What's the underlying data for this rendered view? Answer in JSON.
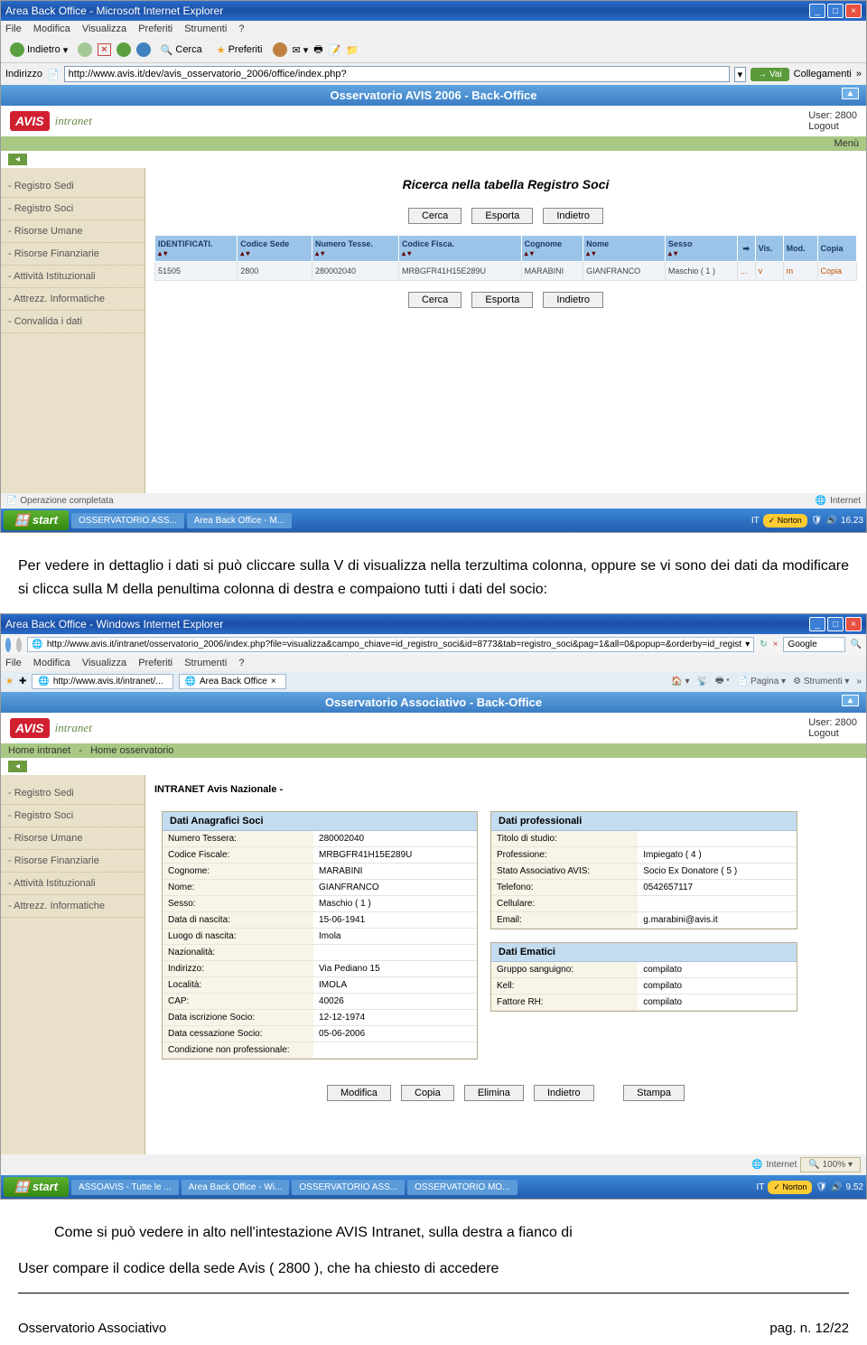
{
  "s1": {
    "title": "Area Back Office - Microsoft Internet Explorer",
    "menu": [
      "File",
      "Modifica",
      "Visualizza",
      "Preferiti",
      "Strumenti",
      "?"
    ],
    "back": "Indietro",
    "search": "Cerca",
    "fav": "Preferiti",
    "addr_label": "Indirizzo",
    "url": "http://www.avis.it/dev/avis_osservatorio_2006/office/index.php?",
    "go": "Vai",
    "links": "Collegamenti",
    "avis_title": "Osservatorio AVIS 2006 - Back-Office",
    "user_label": "User: 2800",
    "logout": "Logout",
    "menu_btn": "Menù",
    "sidebar": [
      "- Registro Sedi",
      "- Registro Soci",
      "- Risorse Umane",
      "- Risorse Finanziarie",
      "- Attività Istituzionali",
      "- Attrezz. Informatiche",
      "- Convalida i dati"
    ],
    "main_title": "Ricerca nella tabella Registro Soci",
    "btns": {
      "cerca": "Cerca",
      "esporta": "Esporta",
      "indietro": "Indietro"
    },
    "th": [
      "IDENTIFICATI.",
      "Codice Sede",
      "Numero Tesse.",
      "Codice Fisca.",
      "Cognome",
      "Nome",
      "Sesso",
      "",
      "Vis.",
      "Mod.",
      "Copia"
    ],
    "row": [
      "51505",
      "2800",
      "280002040",
      "MRBGFR41H15E289U",
      "MARABINI",
      "GIANFRANCO",
      "Maschio ( 1 )",
      "...",
      "v",
      "m",
      "Copia"
    ],
    "status": "Operazione completata",
    "internet": "Internet",
    "start": "start",
    "task1": "OSSERVATORIO ASS...",
    "task2": "Area Back Office - M...",
    "it": "IT",
    "norton": "Norton",
    "time": "16.23"
  },
  "text1": "Per vedere in dettaglio i dati si può cliccare sulla V di visualizza nella terzultima colonna, oppure se vi sono dei dati da modificare si clicca sulla M della penultima colonna di destra e compaiono tutti i dati del socio:",
  "s2": {
    "title": "Area Back Office - Windows Internet Explorer",
    "url": "http://www.avis.it/intranet/osservatorio_2006/index.php?file=visualizza&campo_chiave=id_registro_soci&id=8773&tab=registro_soci&pag=1&all=0&popup=&orderby=id_regist",
    "search_engine": "Google",
    "menu": [
      "File",
      "Modifica",
      "Visualizza",
      "Preferiti",
      "Strumenti",
      "?"
    ],
    "fav_url": "http://www.avis.it/intranet/...",
    "tab": "Area Back Office",
    "pagina": "Pagina",
    "strumenti": "Strumenti",
    "avis_title": "Osservatorio Associativo - Back-Office",
    "user_label": "User: 2800",
    "logout": "Logout",
    "nav1": "Home intranet",
    "nav2": "Home osservatorio",
    "sidebar": [
      "- Registro Sedi",
      "- Registro Soci",
      "- Risorse Umane",
      "- Risorse Finanziarie",
      "- Attività Istituzionali",
      "- Attrezz. Informatiche"
    ],
    "intranet_label": "INTRANET Avis Nazionale -",
    "panel1_title": "Dati Anagrafici Soci",
    "panel1_rows": [
      [
        "Numero Tessera:",
        "280002040"
      ],
      [
        "Codice Fiscale:",
        "MRBGFR41H15E289U"
      ],
      [
        "Cognome:",
        "MARABINI"
      ],
      [
        "Nome:",
        "GIANFRANCO"
      ],
      [
        "Sesso:",
        "Maschio ( 1 )"
      ],
      [
        "Data di nascita:",
        "15-06-1941"
      ],
      [
        "Luogo di nascita:",
        "Imola"
      ],
      [
        "Nazionalità:",
        ""
      ],
      [
        "Indirizzo:",
        "Via Pediano 15"
      ],
      [
        "Località:",
        "IMOLA"
      ],
      [
        "CAP:",
        "40026"
      ],
      [
        "Data iscrizione Socio:",
        "12-12-1974"
      ],
      [
        "Data cessazione Socio:",
        "05-06-2006"
      ],
      [
        "Condizione non professionale:",
        ""
      ]
    ],
    "panel2_title": "Dati professionali",
    "panel2_rows": [
      [
        "Titolo di studio:",
        ""
      ],
      [
        "Professione:",
        "Impiegato ( 4 )"
      ],
      [
        "Stato Associativo AVIS:",
        "Socio Ex Donatore ( 5 )"
      ],
      [
        "Telefono:",
        "0542657117"
      ],
      [
        "Cellulare:",
        ""
      ],
      [
        "Email:",
        "g.marabini@avis.it"
      ]
    ],
    "panel3_title": "Dati Ematici",
    "panel3_rows": [
      [
        "Gruppo sanguigno:",
        "compilato"
      ],
      [
        "Kell:",
        "compilato"
      ],
      [
        "Fattore RH:",
        "compilato"
      ]
    ],
    "btns": {
      "modifica": "Modifica",
      "copia": "Copia",
      "elimina": "Elimina",
      "indietro": "Indietro",
      "stampa": "Stampa"
    },
    "internet": "Internet",
    "zoom": "100%",
    "task1": "ASSOAVIS - Tutte le ...",
    "task2": "Area Back Office - Wi...",
    "task3": "OSSERVATORIO ASS...",
    "task4": "OSSERVATORIO MO...",
    "time": "9.52"
  },
  "text2_line1": "Come si può vedere in alto nell'intestazione AVIS Intranet, sulla destra a fianco di",
  "text2_line2": "User compare il codice della sede Avis ( 2800 ), che ha chiesto di accedere",
  "footer_left": "Osservatorio Associativo",
  "footer_right": "pag. n. 12/22"
}
